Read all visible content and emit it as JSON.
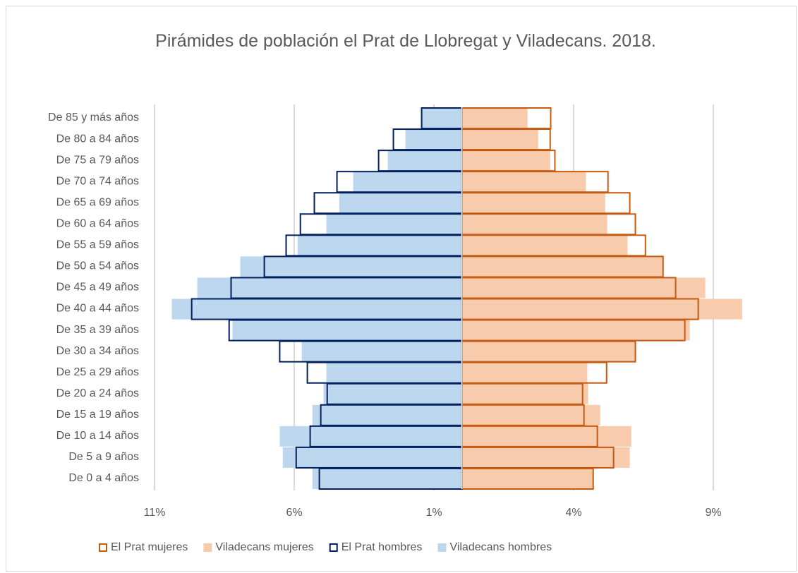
{
  "chart_data": {
    "type": "pyramid",
    "title": "Pirámides de población el Prat de Llobregat y Viladecans. 2018.",
    "categories": [
      "De 0 a 4 años",
      "De 5 a 9 años",
      "De 10 a 14 años",
      "De 15 a 19 años",
      "De 20 a 24 años",
      "De 25 a 29 años",
      "De 30 a 34 años",
      "De 35 a 39 años",
      "De 40 a 44 años",
      "De 45 a 49 años",
      "De 50 a 54 años",
      "De 55 a 59 años",
      "De 60 a 64 años",
      "De 65 a 69 años",
      "De 70 a 74 años",
      "De 75 a 79 años",
      "De 80 a 84 años",
      "De 85 y más años"
    ],
    "series": [
      {
        "name": "El Prat mujeres",
        "color": "#c55a11",
        "outline": true,
        "values": [
          4.7,
          5.43,
          4.85,
          4.37,
          4.32,
          5.18,
          6.21,
          7.98,
          8.46,
          7.65,
          7.2,
          6.57,
          6.21,
          6.01,
          5.23,
          3.33,
          3.16,
          3.18
        ]
      },
      {
        "name": "Viladecans mujeres",
        "color": "#f8cbad",
        "outline": false,
        "values": [
          4.7,
          6.01,
          6.06,
          4.95,
          4.52,
          4.49,
          6.21,
          8.16,
          10.03,
          8.71,
          7.2,
          5.93,
          5.2,
          5.13,
          4.44,
          3.16,
          2.73,
          2.35
        ]
      },
      {
        "name": "El Prat hombres",
        "color": "#002060",
        "outline": true,
        "values": [
          -5.1,
          -5.93,
          -5.43,
          -5.05,
          -4.82,
          -5.53,
          -6.52,
          -8.33,
          -9.67,
          -8.26,
          -7.07,
          -6.29,
          -5.78,
          -5.28,
          -4.47,
          -2.98,
          -2.45,
          -1.44
        ]
      },
      {
        "name": "Viladecans hombres",
        "color": "#bdd7ee",
        "outline": false,
        "values": [
          -5.35,
          -6.41,
          -6.52,
          -5.35,
          -4.95,
          -4.85,
          -5.73,
          -8.21,
          -10.38,
          -9.47,
          -7.93,
          -5.88,
          -4.85,
          -4.39,
          -3.89,
          -2.65,
          -2.02,
          -1.44
        ]
      }
    ],
    "xlim": [
      -11,
      9
    ],
    "xticks": [
      {
        "value": -11,
        "label": "11%"
      },
      {
        "value": -6,
        "label": "6%"
      },
      {
        "value": -1,
        "label": "1%"
      },
      {
        "value": 4,
        "label": "4%"
      },
      {
        "value": 9,
        "label": "9%"
      }
    ],
    "grid": true,
    "legend": "bottom"
  }
}
